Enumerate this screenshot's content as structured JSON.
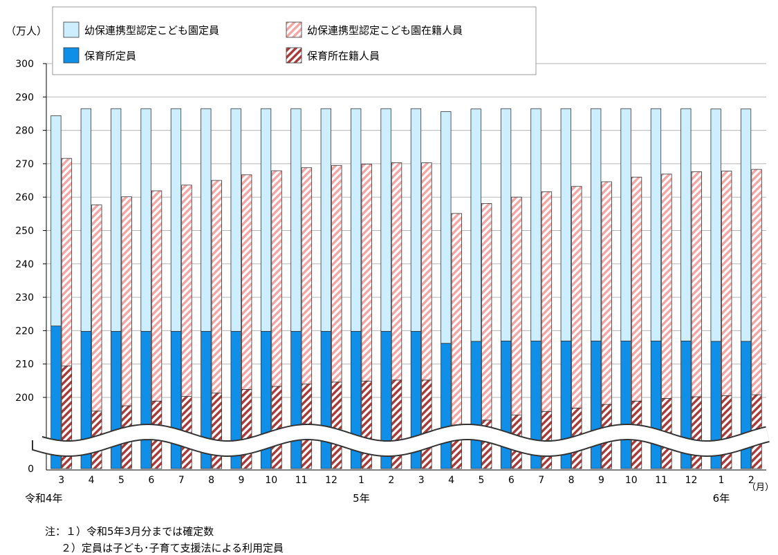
{
  "chart_data": {
    "type": "bar",
    "unit_label": "（万人）",
    "month_label": "（月）",
    "year_labels": [
      {
        "text": "令和4年",
        "at_index": 0
      },
      {
        "text": "5年",
        "at_index": 10
      },
      {
        "text": "6年",
        "at_index": 22
      }
    ],
    "categories": [
      "3",
      "4",
      "5",
      "6",
      "7",
      "8",
      "9",
      "10",
      "11",
      "12",
      "1",
      "2",
      "3",
      "4",
      "5",
      "6",
      "7",
      "8",
      "9",
      "10",
      "11",
      "12",
      "1",
      "2"
    ],
    "y_ticks": [
      "0",
      "200",
      "210",
      "220",
      "230",
      "240",
      "250",
      "260",
      "270",
      "280",
      "290",
      "300"
    ],
    "ylim": [
      190,
      300
    ],
    "axis_break": true,
    "legend_position": "top",
    "series": [
      {
        "name": "幼保連携型認定こども園定員",
        "color": "#cceeff",
        "pattern": "solid",
        "group": "capacity",
        "values": [
          63.0,
          66.7,
          66.7,
          66.7,
          66.7,
          66.7,
          66.7,
          66.7,
          66.7,
          66.7,
          66.7,
          66.7,
          66.7,
          69.4,
          69.6,
          69.6,
          69.6,
          69.6,
          69.6,
          69.6,
          69.6,
          69.6,
          69.6,
          69.6
        ]
      },
      {
        "name": "幼保連携型認定こども園在籍人員",
        "color": "#f4a6a6",
        "pattern": "hatch",
        "group": "enrolled",
        "values": [
          62.2,
          61.8,
          62.6,
          63.0,
          63.3,
          63.7,
          64.3,
          64.6,
          64.8,
          64.9,
          65.0,
          65.1,
          65.1,
          64.0,
          64.9,
          65.3,
          65.8,
          66.4,
          66.7,
          67.1,
          67.2,
          67.4,
          67.3,
          67.5
        ]
      },
      {
        "name": "保育所定員",
        "color": "#0f8fe8",
        "pattern": "solid",
        "group": "capacity",
        "values": [
          221.4,
          219.8,
          219.8,
          219.8,
          219.8,
          219.8,
          219.8,
          219.8,
          219.8,
          219.8,
          219.8,
          219.8,
          219.8,
          216.2,
          216.8,
          216.9,
          216.9,
          216.9,
          216.9,
          216.9,
          216.9,
          216.9,
          216.8,
          216.8
        ]
      },
      {
        "name": "保育所在籍人員",
        "color": "#a83c3c",
        "pattern": "hatch",
        "group": "enrolled",
        "values": [
          209.4,
          195.9,
          197.5,
          198.9,
          200.3,
          201.3,
          202.4,
          203.3,
          204.0,
          204.6,
          204.9,
          205.2,
          205.2,
          191.1,
          193.2,
          194.7,
          195.8,
          196.8,
          197.9,
          198.9,
          199.7,
          200.2,
          200.5,
          200.8
        ]
      }
    ]
  },
  "notes": [
    "注：１）令和5年3月分までは確定数",
    "２）定員は子ども･子育て支援法による利用定員"
  ]
}
